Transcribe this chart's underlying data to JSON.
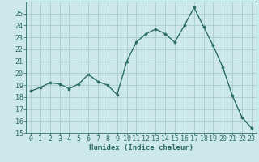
{
  "x": [
    0,
    1,
    2,
    3,
    4,
    5,
    6,
    7,
    8,
    9,
    10,
    11,
    12,
    13,
    14,
    15,
    16,
    17,
    18,
    19,
    20,
    21,
    22,
    23
  ],
  "y": [
    18.5,
    18.8,
    19.2,
    19.1,
    18.7,
    19.1,
    19.9,
    19.3,
    19.0,
    18.2,
    21.0,
    22.6,
    23.3,
    23.7,
    23.3,
    22.6,
    24.0,
    25.5,
    23.9,
    22.3,
    20.5,
    18.1,
    16.3,
    15.4
  ],
  "line_color": "#2d6e63",
  "marker_color": "#2d6e63",
  "bg_color": "#cce8e8",
  "grid_color": "#aacccc",
  "xlabel": "Humidex (Indice chaleur)",
  "ylim": [
    15,
    26
  ],
  "xlim": [
    -0.5,
    23.5
  ],
  "yticks": [
    15,
    16,
    17,
    18,
    19,
    20,
    21,
    22,
    23,
    24,
    25
  ],
  "xticks": [
    0,
    1,
    2,
    3,
    4,
    5,
    6,
    7,
    8,
    9,
    10,
    11,
    12,
    13,
    14,
    15,
    16,
    17,
    18,
    19,
    20,
    21,
    22,
    23
  ],
  "label_color": "#2d6e63",
  "tick_color": "#2d6e63",
  "font_size_label": 6.5,
  "font_size_tick": 6.0,
  "linewidth": 1.0,
  "markersize": 2.2
}
